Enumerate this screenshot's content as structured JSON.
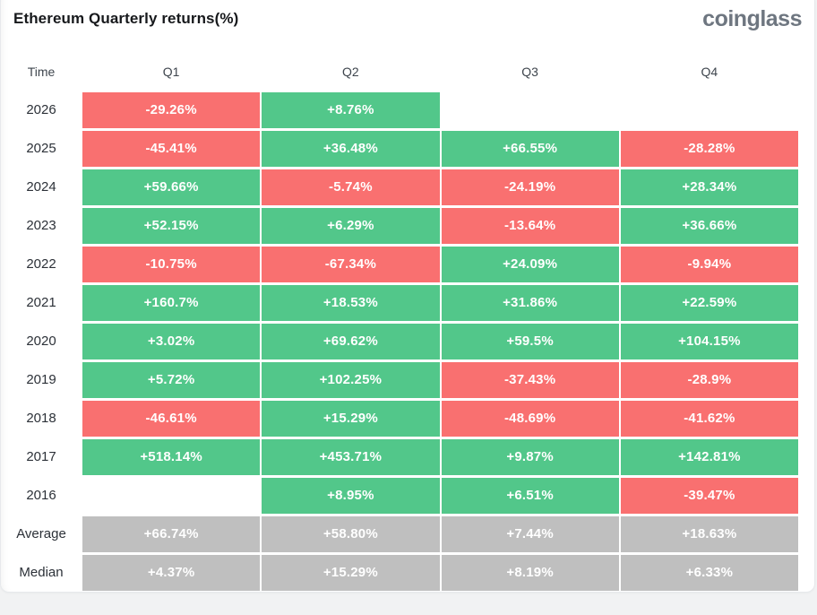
{
  "page": {
    "logo_text": "coinglass"
  },
  "chart_data": {
    "type": "table",
    "title": "Ethereum Quarterly returns(%)",
    "columns": [
      "Time",
      "Q1",
      "Q2",
      "Q3",
      "Q4"
    ],
    "colors": {
      "positive": "#52c78a",
      "negative": "#f97070",
      "summary": "#bfbfbf",
      "value_text": "#ffffff"
    },
    "rows": [
      {
        "label": "2026",
        "values": [
          "-29.26%",
          "+8.76%",
          null,
          null
        ]
      },
      {
        "label": "2025",
        "values": [
          "-45.41%",
          "+36.48%",
          "+66.55%",
          "-28.28%"
        ]
      },
      {
        "label": "2024",
        "values": [
          "+59.66%",
          "-5.74%",
          "-24.19%",
          "+28.34%"
        ]
      },
      {
        "label": "2023",
        "values": [
          "+52.15%",
          "+6.29%",
          "-13.64%",
          "+36.66%"
        ]
      },
      {
        "label": "2022",
        "values": [
          "-10.75%",
          "-67.34%",
          "+24.09%",
          "-9.94%"
        ]
      },
      {
        "label": "2021",
        "values": [
          "+160.7%",
          "+18.53%",
          "+31.86%",
          "+22.59%"
        ]
      },
      {
        "label": "2020",
        "values": [
          "+3.02%",
          "+69.62%",
          "+59.5%",
          "+104.15%"
        ]
      },
      {
        "label": "2019",
        "values": [
          "+5.72%",
          "+102.25%",
          "-37.43%",
          "-28.9%"
        ]
      },
      {
        "label": "2018",
        "values": [
          "-46.61%",
          "+15.29%",
          "-48.69%",
          "-41.62%"
        ]
      },
      {
        "label": "2017",
        "values": [
          "+518.14%",
          "+453.71%",
          "+9.87%",
          "+142.81%"
        ]
      },
      {
        "label": "2016",
        "values": [
          null,
          "+8.95%",
          "+6.51%",
          "-39.47%"
        ]
      },
      {
        "label": "Average",
        "summary": true,
        "values": [
          "+66.74%",
          "+58.80%",
          "+7.44%",
          "+18.63%"
        ]
      },
      {
        "label": "Median",
        "summary": true,
        "values": [
          "+4.37%",
          "+15.29%",
          "+8.19%",
          "+6.33%"
        ]
      }
    ]
  }
}
